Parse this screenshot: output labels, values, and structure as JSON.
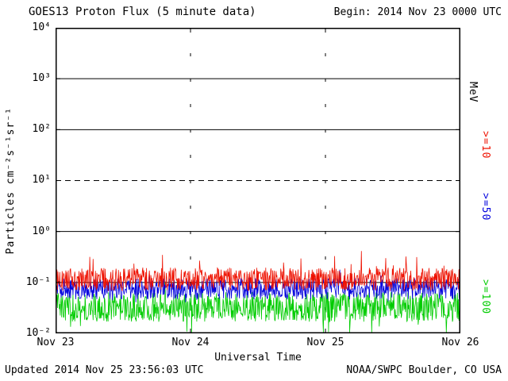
{
  "header": {
    "title": "GOES13 Proton Flux (5 minute data)",
    "begin_label": "Begin: 2014 Nov 23 0000 UTC"
  },
  "footer": {
    "updated_label": "Updated 2014 Nov 25 23:56:03 UTC",
    "source_label": "NOAA/SWPC Boulder, CO USA"
  },
  "chart_data": {
    "type": "line",
    "title": "GOES13 Proton Flux (5 minute data)",
    "xlabel": "Universal Time",
    "ylabel": "Particles cm⁻²s⁻¹sr⁻¹",
    "y_unit_label": "MeV",
    "x_ticks": [
      "Nov 23",
      "Nov 24",
      "Nov 25",
      "Nov 26"
    ],
    "y_ticks": [
      "10⁴",
      "10³",
      "10²",
      "10¹",
      "10⁰",
      "10⁻¹",
      "10⁻²"
    ],
    "ylim_log10": [
      -2,
      4
    ],
    "xlim_days": [
      0,
      3
    ],
    "days": 3,
    "points_per_day": 288,
    "legend_position": "right-rotated",
    "grid": {
      "solid_decades_log10": [
        3,
        2,
        0,
        -1
      ],
      "dashed_threshold_log10": 1,
      "vertical_day_dotted_at": [
        "Nov 24",
        "Nov 25"
      ]
    },
    "series": [
      {
        "name": ">=10",
        "color": "#ee1100",
        "base_flux": 0.115,
        "typical_range": [
          0.06,
          0.45
        ],
        "log_noise": 0.23,
        "spike_prob": 0.03,
        "spike_log": 0.55,
        "dip_prob": 0.0,
        "dip_log": 0.0
      },
      {
        "name": ">=50",
        "color": "#0000dd",
        "base_flux": 0.075,
        "typical_range": [
          0.04,
          0.15
        ],
        "log_noise": 0.21,
        "spike_prob": 0.015,
        "spike_log": 0.2,
        "dip_prob": 0.02,
        "dip_log": 0.2
      },
      {
        "name": ">=100",
        "color": "#00cc00",
        "base_flux": 0.033,
        "typical_range": [
          0.011,
          0.09
        ],
        "log_noise": 0.29,
        "spike_prob": 0.015,
        "spike_log": 0.25,
        "dip_prob": 0.05,
        "dip_log": 0.35
      }
    ]
  }
}
